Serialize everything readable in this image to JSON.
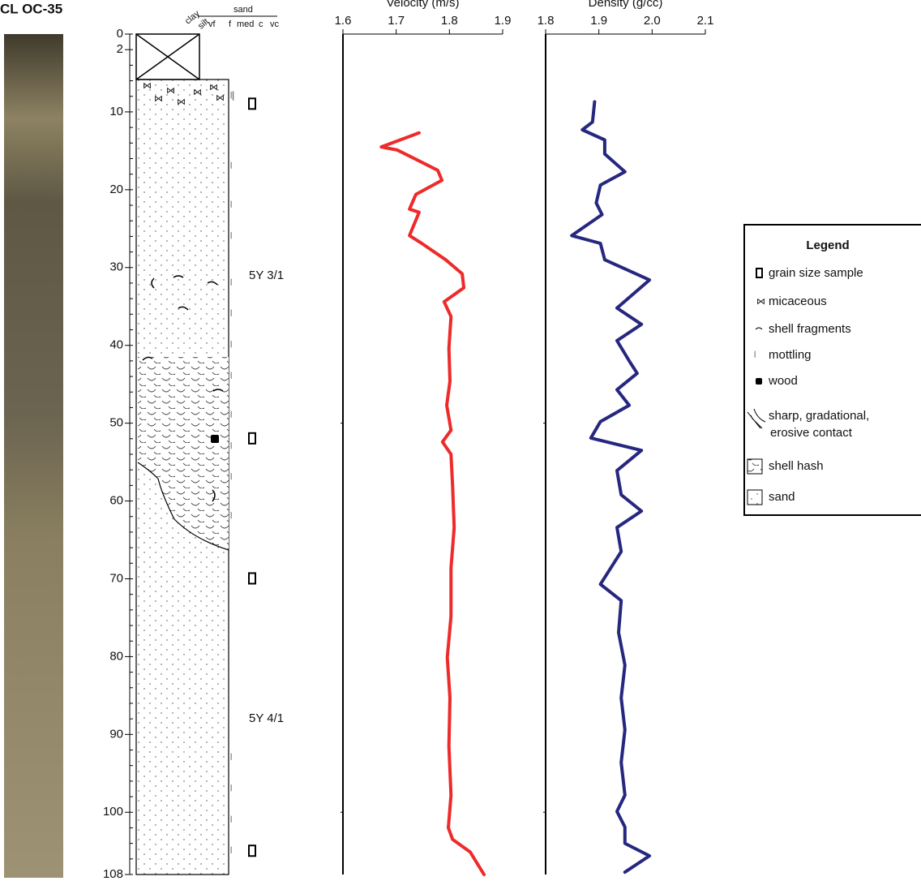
{
  "title": "CL OC-35",
  "lithology": {
    "clay": "clay",
    "silt": "silt",
    "sand": "sand",
    "vf": "vf",
    "f": "f",
    "med": "med",
    "c": "c",
    "vc": "vc",
    "color_upper": "5Y 3/1",
    "color_lower": "5Y 4/1",
    "grain_size_samples": [
      9,
      52,
      70,
      105
    ]
  },
  "legend": {
    "title": "Legend",
    "items": [
      "grain size sample",
      "micaceous",
      "shell fragments",
      "mottling",
      "wood",
      "sharp, gradational,",
      "erosive contact",
      "shell hash",
      "sand"
    ]
  },
  "chart_data": [
    {
      "type": "line",
      "title": "Velocity (m/s)",
      "orientation": "horizontal",
      "color": "#ee2a2a",
      "x": [
        12.7,
        14.5,
        14.9,
        17.5,
        18.8,
        20.6,
        22.5,
        22.9,
        25.9,
        26.9,
        29.0,
        30.8,
        32.6,
        34.4,
        36.3,
        40.4,
        44.6,
        47.7,
        50.9,
        52.4,
        54.0,
        58.2,
        63.4,
        68.6,
        74.8,
        80.1,
        85.3,
        91.5,
        97.8,
        102.0,
        103.5,
        105.1,
        108.0
      ],
      "values": [
        1.743,
        1.672,
        1.702,
        1.778,
        1.786,
        1.737,
        1.725,
        1.743,
        1.725,
        1.748,
        1.793,
        1.824,
        1.827,
        1.79,
        1.803,
        1.799,
        1.801,
        1.795,
        1.803,
        1.787,
        1.803,
        1.806,
        1.809,
        1.803,
        1.803,
        1.796,
        1.801,
        1.799,
        1.803,
        1.798,
        1.806,
        1.839,
        1.865
      ],
      "xlim": [
        0,
        108
      ],
      "xticks": [
        0,
        2,
        10,
        20,
        30,
        40,
        50,
        60,
        70,
        80,
        90,
        100,
        108
      ],
      "ylim": [
        1.6,
        1.9
      ],
      "yticks": [
        1.6,
        1.7,
        1.8,
        1.9
      ]
    },
    {
      "type": "line",
      "title": "Density (g/cc)",
      "orientation": "horizontal",
      "color": "#26277f",
      "x": [
        8.7,
        11.3,
        12.3,
        13.6,
        15.4,
        17.7,
        19.4,
        21.7,
        23.2,
        25.9,
        26.9,
        29.0,
        31.6,
        35.2,
        37.3,
        39.4,
        42.0,
        43.6,
        45.7,
        47.7,
        49.8,
        51.9,
        53.5,
        56.1,
        59.2,
        61.3,
        63.4,
        66.5,
        70.7,
        72.8,
        76.9,
        81.1,
        85.3,
        89.4,
        93.6,
        97.8,
        99.9,
        101.9,
        104.0,
        105.6,
        107.7
      ],
      "values": [
        1.892,
        1.888,
        1.869,
        1.911,
        1.911,
        1.949,
        1.903,
        1.895,
        1.906,
        1.849,
        1.903,
        1.911,
        1.995,
        1.934,
        1.98,
        1.934,
        1.957,
        1.972,
        1.934,
        1.957,
        1.903,
        1.885,
        1.98,
        1.934,
        1.942,
        1.98,
        1.934,
        1.942,
        1.903,
        1.942,
        1.937,
        1.949,
        1.942,
        1.949,
        1.942,
        1.949,
        1.934,
        1.949,
        1.949,
        1.995,
        1.949
      ],
      "xlim": [
        0,
        108
      ],
      "ylim": [
        1.8,
        2.1
      ],
      "yticks": [
        1.8,
        1.9,
        {
          "value": 2.0,
          "label": "2.0"
        },
        2.1
      ]
    }
  ]
}
